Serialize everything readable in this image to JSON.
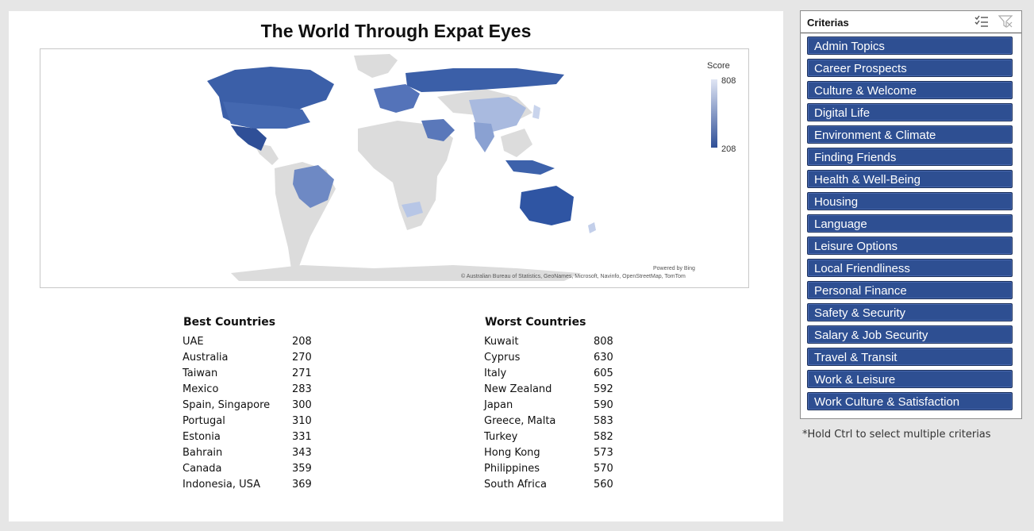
{
  "title": "The World Through Expat Eyes",
  "map": {
    "legend_title": "Score",
    "legend_max": "808",
    "legend_min": "208",
    "powered_by": "Powered by Bing",
    "attribution": "© Australian Bureau of Statistics, GeoNames, Microsoft, Navinfo, OpenStreetMap, TomTom",
    "colors": {
      "high_score": "#dfe5f4",
      "low_score": "#2f4f97",
      "no_data": "#dcdcdc"
    }
  },
  "best": {
    "heading": "Best Countries",
    "rows": [
      {
        "country": "UAE",
        "score": "208"
      },
      {
        "country": "Australia",
        "score": "270"
      },
      {
        "country": "Taiwan",
        "score": "271"
      },
      {
        "country": "Mexico",
        "score": "283"
      },
      {
        "country": "Spain, Singapore",
        "score": "300"
      },
      {
        "country": "Portugal",
        "score": "310"
      },
      {
        "country": "Estonia",
        "score": "331"
      },
      {
        "country": "Bahrain",
        "score": "343"
      },
      {
        "country": "Canada",
        "score": "359"
      },
      {
        "country": "Indonesia, USA",
        "score": "369"
      }
    ]
  },
  "worst": {
    "heading": "Worst Countries",
    "rows": [
      {
        "country": "Kuwait",
        "score": "808"
      },
      {
        "country": "Cyprus",
        "score": "630"
      },
      {
        "country": "Italy",
        "score": "605"
      },
      {
        "country": "New Zealand",
        "score": "592"
      },
      {
        "country": "Japan",
        "score": "590"
      },
      {
        "country": "Greece, Malta",
        "score": "583"
      },
      {
        "country": "Turkey",
        "score": "582"
      },
      {
        "country": "Hong Kong",
        "score": "573"
      },
      {
        "country": "Philippines",
        "score": "570"
      },
      {
        "country": "South Africa",
        "score": "560"
      }
    ]
  },
  "slicer": {
    "title": "Criterias",
    "icons": [
      "multi-select-icon",
      "clear-filter-icon"
    ],
    "items": [
      "Admin Topics",
      "Career Prospects",
      "Culture & Welcome",
      "Digital Life",
      "Environment & Climate",
      "Finding Friends",
      "Health & Well-Being",
      "Housing",
      "Language",
      "Leisure Options",
      "Local Friendliness",
      "Personal Finance",
      "Safety & Security",
      "Salary & Job Security",
      "Travel & Transit",
      "Work & Leisure",
      "Work Culture & Satisfaction"
    ]
  },
  "note": "*Hold Ctrl to select multiple criterias",
  "chart_data": {
    "type": "table",
    "title": "The World Through Expat Eyes",
    "legend": {
      "title": "Score",
      "max": 808,
      "min": 208
    },
    "tables": [
      {
        "heading": "Best Countries",
        "countries": [
          "UAE",
          "Australia",
          "Taiwan",
          "Mexico",
          "Spain, Singapore",
          "Portugal",
          "Estonia",
          "Bahrain",
          "Canada",
          "Indonesia, USA"
        ],
        "values": [
          208,
          270,
          271,
          283,
          300,
          310,
          331,
          343,
          359,
          369
        ]
      },
      {
        "heading": "Worst Countries",
        "countries": [
          "Kuwait",
          "Cyprus",
          "Italy",
          "New Zealand",
          "Japan",
          "Greece, Malta",
          "Turkey",
          "Hong Kong",
          "Philippines",
          "South Africa"
        ],
        "values": [
          808,
          630,
          605,
          592,
          590,
          583,
          582,
          573,
          570,
          560
        ]
      }
    ]
  }
}
